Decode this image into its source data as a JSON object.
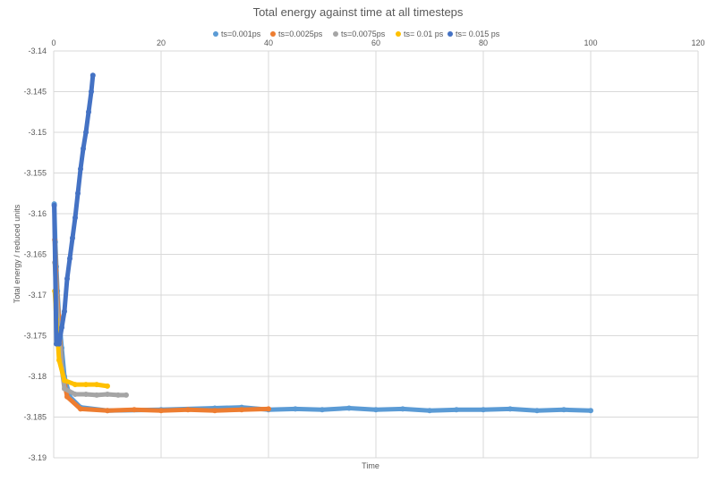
{
  "chart_data": {
    "type": "scatter",
    "title": "Total energy against time at all timesteps",
    "xlabel": "Time",
    "ylabel": "Total energy  / reduced units",
    "xlim": [
      0,
      120
    ],
    "ylim": [
      -3.19,
      -3.14
    ],
    "x_ticks": [
      "0",
      "20",
      "40",
      "60",
      "80",
      "100",
      "120"
    ],
    "y_ticks": [
      "-3.14",
      "-3.145",
      "-3.15",
      "-3.155",
      "-3.16",
      "-3.165",
      "-3.17",
      "-3.175",
      "-3.18",
      "-3.185",
      "-3.19"
    ],
    "x_axis_position": "top",
    "grid": true,
    "legend_position": "top",
    "series": [
      {
        "name": "ts=0.001ps",
        "color": "#5b9bd5",
        "points": [
          [
            0.1,
            -3.1588
          ],
          [
            0.3,
            -3.1635
          ],
          [
            0.5,
            -3.1665
          ],
          [
            0.7,
            -3.1695
          ],
          [
            1,
            -3.1728
          ],
          [
            1.5,
            -3.1765
          ],
          [
            2,
            -3.18
          ],
          [
            3,
            -3.1825
          ],
          [
            5,
            -3.1838
          ],
          [
            10,
            -3.1842
          ],
          [
            20,
            -3.1841
          ],
          [
            30,
            -3.1839
          ],
          [
            35,
            -3.1838
          ],
          [
            40,
            -3.1841
          ],
          [
            45,
            -3.184
          ],
          [
            50,
            -3.1841
          ],
          [
            55,
            -3.1839
          ],
          [
            60,
            -3.1841
          ],
          [
            65,
            -3.184
          ],
          [
            70,
            -3.1842
          ],
          [
            75,
            -3.1841
          ],
          [
            80,
            -3.1841
          ],
          [
            85,
            -3.184
          ],
          [
            90,
            -3.1842
          ],
          [
            95,
            -3.1841
          ],
          [
            100,
            -3.1842
          ]
        ]
      },
      {
        "name": "ts=0.0025ps",
        "color": "#ed7d31",
        "points": [
          [
            0.2,
            -3.1632
          ],
          [
            0.4,
            -3.167
          ],
          [
            0.6,
            -3.17
          ],
          [
            0.9,
            -3.1725
          ],
          [
            1.5,
            -3.179
          ],
          [
            2.5,
            -3.1825
          ],
          [
            5,
            -3.184
          ],
          [
            10,
            -3.1842
          ],
          [
            15,
            -3.1841
          ],
          [
            20,
            -3.1842
          ],
          [
            25,
            -3.1841
          ],
          [
            30,
            -3.1842
          ],
          [
            35,
            -3.1841
          ],
          [
            40,
            -3.184
          ]
        ]
      },
      {
        "name": "ts=0.0075ps",
        "color": "#a5a5a5",
        "points": [
          [
            0.2,
            -3.166
          ],
          [
            0.5,
            -3.17
          ],
          [
            1,
            -3.175
          ],
          [
            1.5,
            -3.179
          ],
          [
            2,
            -3.1815
          ],
          [
            4,
            -3.1822
          ],
          [
            6,
            -3.1822
          ],
          [
            8,
            -3.1823
          ],
          [
            10,
            -3.1822
          ],
          [
            12,
            -3.1823
          ],
          [
            13.5,
            -3.1823
          ]
        ]
      },
      {
        "name": "ts= 0.01 ps",
        "color": "#ffc000",
        "points": [
          [
            0.2,
            -3.1695
          ],
          [
            0.5,
            -3.173
          ],
          [
            1,
            -3.178
          ],
          [
            2,
            -3.1805
          ],
          [
            4,
            -3.181
          ],
          [
            6,
            -3.181
          ],
          [
            8,
            -3.181
          ],
          [
            10,
            -3.1812
          ]
        ]
      },
      {
        "name": "ts= 0.015 ps",
        "color": "#4472c4",
        "points": [
          [
            0.1,
            -3.159
          ],
          [
            0.5,
            -3.176
          ],
          [
            1,
            -3.176
          ],
          [
            1.5,
            -3.174
          ],
          [
            2,
            -3.172
          ],
          [
            2.5,
            -3.168
          ],
          [
            3,
            -3.1655
          ],
          [
            3.5,
            -3.163
          ],
          [
            4,
            -3.1605
          ],
          [
            4.5,
            -3.1575
          ],
          [
            5,
            -3.1545
          ],
          [
            5.5,
            -3.152
          ],
          [
            6,
            -3.15
          ],
          [
            6.5,
            -3.1475
          ],
          [
            7,
            -3.145
          ],
          [
            7.3,
            -3.143
          ]
        ]
      }
    ]
  }
}
